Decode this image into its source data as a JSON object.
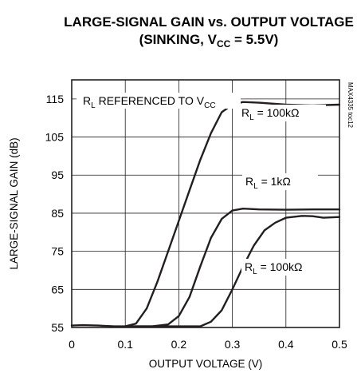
{
  "chart_data": {
    "type": "line",
    "title_line1": "LARGE-SIGNAL GAIN vs. OUTPUT VOLTAGE",
    "title_line2_prefix": "(SINKING, V",
    "title_line2_sub": "CC",
    "title_line2_suffix": " = 5.5V)",
    "xlabel": "OUTPUT VOLTAGE (V)",
    "ylabel": "LARGE-SIGNAL GAIN (dB)",
    "xlim": [
      0,
      0.5
    ],
    "ylim": [
      55,
      120
    ],
    "x_ticks": [
      {
        "value": 0,
        "label": "0"
      },
      {
        "value": 0.1,
        "label": "0.1"
      },
      {
        "value": 0.2,
        "label": "0.2"
      },
      {
        "value": 0.3,
        "label": "0.3"
      },
      {
        "value": 0.4,
        "label": "0.4"
      },
      {
        "value": 0.5,
        "label": "0.5"
      }
    ],
    "y_ticks": [
      {
        "value": 55,
        "label": "55"
      },
      {
        "value": 65,
        "label": "65"
      },
      {
        "value": 75,
        "label": "75"
      },
      {
        "value": 85,
        "label": "85"
      },
      {
        "value": 95,
        "label": "95"
      },
      {
        "value": 105,
        "label": "105"
      },
      {
        "value": 115,
        "label": "115"
      }
    ],
    "grid": true,
    "note": {
      "prefix": "R",
      "sub": "L",
      "middle": " REFERENCED TO V",
      "sub2": "CC"
    },
    "side_code": "MAX4335 toc12",
    "series": [
      {
        "label": {
          "prefix": "R",
          "sub": "L",
          "suffix": " = 100kΩ"
        },
        "points": [
          [
            0,
            55.5
          ],
          [
            0.02,
            55.6
          ],
          [
            0.05,
            55.5
          ],
          [
            0.08,
            55.3
          ],
          [
            0.1,
            55.3
          ],
          [
            0.12,
            56.0
          ],
          [
            0.14,
            60.0
          ],
          [
            0.16,
            67.0
          ],
          [
            0.18,
            75.0
          ],
          [
            0.2,
            83.0
          ],
          [
            0.22,
            91.0
          ],
          [
            0.24,
            99.0
          ],
          [
            0.26,
            106.0
          ],
          [
            0.28,
            111.5
          ],
          [
            0.3,
            113.5
          ],
          [
            0.32,
            114.2
          ],
          [
            0.35,
            114.0
          ],
          [
            0.4,
            113.5
          ],
          [
            0.45,
            113.3
          ],
          [
            0.5,
            113.5
          ]
        ]
      },
      {
        "label": {
          "prefix": "R",
          "sub": "L",
          "suffix": " = 1kΩ"
        },
        "points": [
          [
            0.1,
            55.3
          ],
          [
            0.15,
            55.3
          ],
          [
            0.18,
            55.8
          ],
          [
            0.2,
            58.0
          ],
          [
            0.22,
            63.0
          ],
          [
            0.24,
            71.0
          ],
          [
            0.26,
            78.5
          ],
          [
            0.28,
            83.5
          ],
          [
            0.3,
            85.7
          ],
          [
            0.32,
            86.2
          ],
          [
            0.35,
            86.0
          ],
          [
            0.4,
            85.9
          ],
          [
            0.45,
            86.0
          ],
          [
            0.5,
            86.0
          ]
        ]
      },
      {
        "label": {
          "prefix": "R",
          "sub": "L",
          "suffix": " = 100kΩ"
        },
        "points": [
          [
            0.1,
            55.3
          ],
          [
            0.2,
            55.3
          ],
          [
            0.24,
            55.3
          ],
          [
            0.26,
            56.5
          ],
          [
            0.28,
            59.5
          ],
          [
            0.3,
            65.0
          ],
          [
            0.32,
            71.0
          ],
          [
            0.34,
            76.5
          ],
          [
            0.36,
            80.5
          ],
          [
            0.38,
            82.5
          ],
          [
            0.4,
            83.8
          ],
          [
            0.43,
            84.3
          ],
          [
            0.45,
            84.2
          ],
          [
            0.47,
            83.8
          ],
          [
            0.5,
            84.0
          ]
        ]
      }
    ]
  }
}
